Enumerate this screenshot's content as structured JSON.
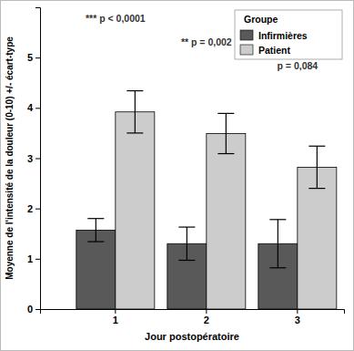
{
  "chart_data": {
    "type": "bar",
    "x_label": "Jour postopératoire",
    "y_label": "Moyenne de l'intensité de la douleur (0-10) +/- écart-type",
    "legend_title": "Groupe",
    "legend": "upper right",
    "categories": [
      "1",
      "2",
      "3"
    ],
    "series": [
      {
        "name": "Infirmières",
        "color": "#595959",
        "values": [
          1.57,
          1.3,
          1.3
        ],
        "errors": [
          0.23,
          0.33,
          0.48
        ]
      },
      {
        "name": "Patient",
        "color": "#cccccc",
        "values": [
          3.92,
          3.49,
          2.82
        ],
        "errors": [
          0.42,
          0.4,
          0.42
        ]
      }
    ],
    "annotations": [
      {
        "text": "*** p < 0,0001",
        "category": "1"
      },
      {
        "text": "** p = 0,002",
        "category": "2"
      },
      {
        "text": "p = 0,084",
        "category": "3"
      }
    ],
    "ylim": [
      0,
      6
    ],
    "yticks": [
      0,
      1,
      2,
      3,
      4,
      5
    ]
  }
}
